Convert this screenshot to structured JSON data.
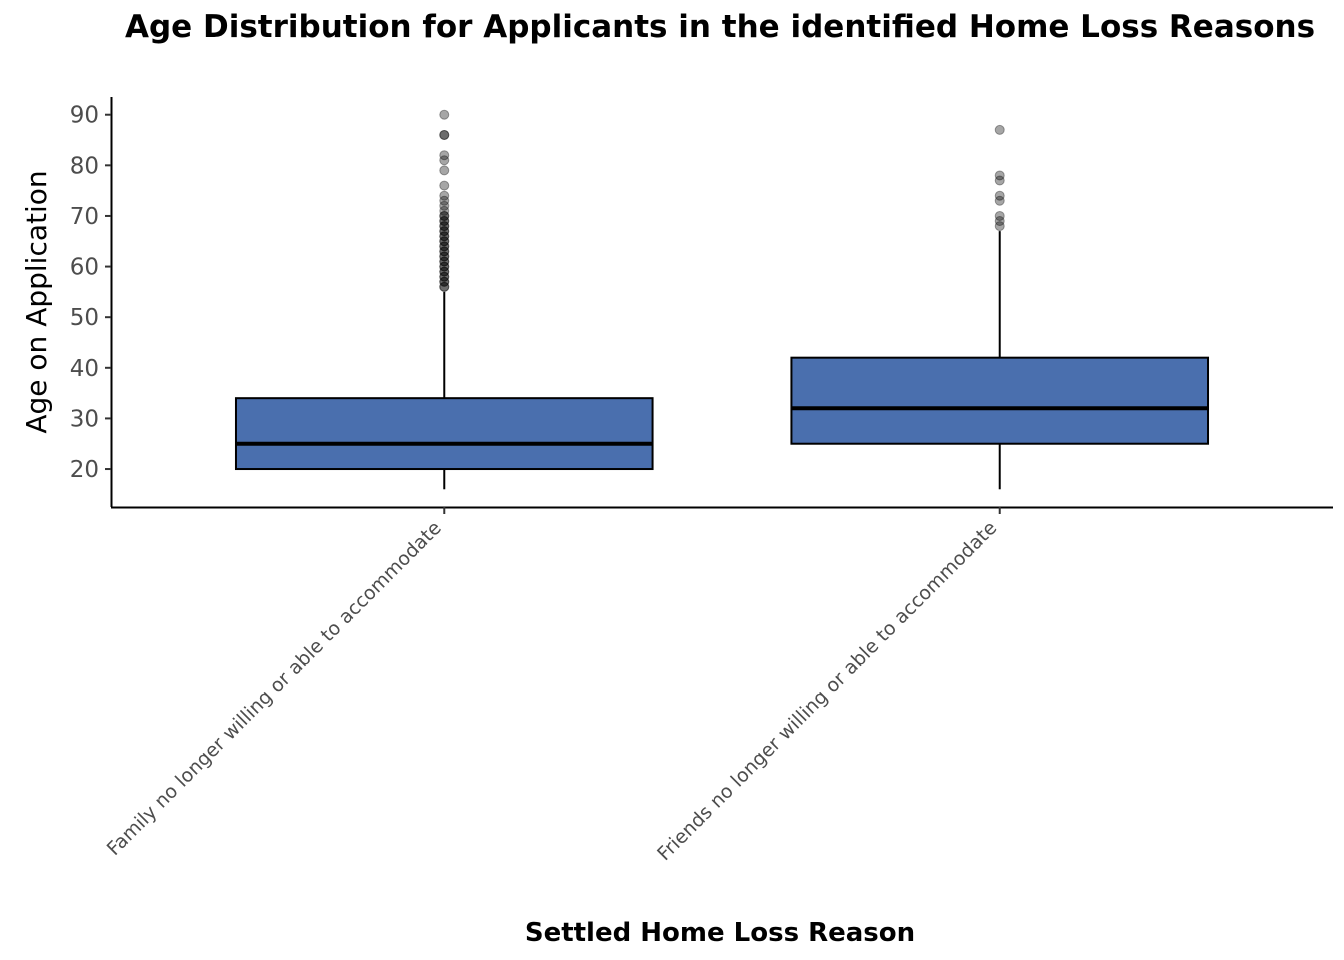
{
  "chart_data": {
    "type": "boxplot",
    "title": "Age Distribution for Applicants in the identified Home Loss Reasons",
    "xlabel": "Settled Home Loss Reason",
    "ylabel": "Age on Application",
    "ylim": [
      12.5,
      93.5
    ],
    "yticks": [
      20,
      30,
      40,
      50,
      60,
      70,
      80,
      90
    ],
    "box_color": "#4a6fae",
    "outlier_color": "#000000",
    "grid": false,
    "legend": "none",
    "categories": [
      "Family no longer willing or able to accommodate",
      "Friends no longer willing or able to accommodate"
    ],
    "boxes": [
      {
        "category": "Family no longer willing or able to accommodate",
        "whisker_low": 16,
        "q1": 20,
        "median": 25,
        "q3": 34,
        "whisker_high": 55,
        "outliers": [
          56,
          56,
          57,
          57,
          58,
          58,
          59,
          59,
          60,
          60,
          61,
          61,
          62,
          62,
          63,
          63,
          64,
          64,
          65,
          65,
          66,
          66,
          67,
          67,
          68,
          68,
          69,
          69,
          70,
          70,
          71,
          72,
          73,
          74,
          76,
          79,
          81,
          82,
          86,
          86,
          90
        ]
      },
      {
        "category": "Friends no longer willing or able to accommodate",
        "whisker_low": 16,
        "q1": 25,
        "median": 32,
        "q3": 42,
        "whisker_high": 67,
        "outliers": [
          68,
          69,
          70,
          73,
          74,
          77,
          78,
          87
        ]
      }
    ]
  }
}
